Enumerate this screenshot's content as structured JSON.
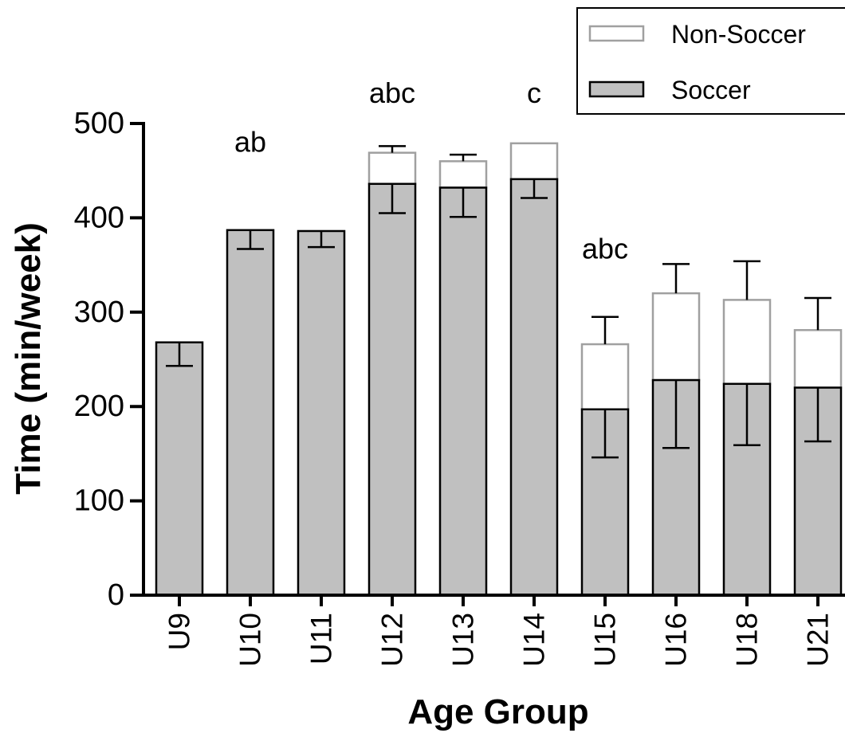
{
  "chart_data": {
    "type": "bar",
    "stacked": true,
    "xlabel": "Age Group",
    "ylabel": "Time (min/week)",
    "ylim": [
      0,
      500
    ],
    "yticks": [
      0,
      100,
      200,
      300,
      400,
      500
    ],
    "categories": [
      "U9",
      "U10",
      "U11",
      "U12",
      "U13",
      "U14",
      "U15",
      "U16",
      "U18",
      "U21"
    ],
    "series": [
      {
        "name": "Soccer",
        "color": "#c0c0c0",
        "edge": "#000000",
        "values": [
          268,
          387,
          386,
          436,
          432,
          441,
          197,
          228,
          224,
          220
        ],
        "error_lower": [
          25,
          20,
          17,
          31,
          31,
          20,
          51,
          72,
          65,
          57
        ]
      },
      {
        "name": "Non-Soccer",
        "color": "#ffffff",
        "edge": "#a0a0a0",
        "values": [
          0,
          0,
          0,
          33,
          28,
          38,
          69,
          92,
          89,
          61
        ],
        "error_upper": [
          0,
          0,
          0,
          7,
          7,
          0,
          29,
          31,
          41,
          34
        ]
      }
    ],
    "annotations": [
      {
        "category": "U10",
        "text": "ab",
        "value": 470
      },
      {
        "category": "U12",
        "text": "abc",
        "value": 522
      },
      {
        "category": "U14",
        "text": "c",
        "value": 522
      },
      {
        "category": "U15",
        "text": "abc",
        "value": 357
      }
    ],
    "grid": false,
    "legend_position": "top-right"
  }
}
